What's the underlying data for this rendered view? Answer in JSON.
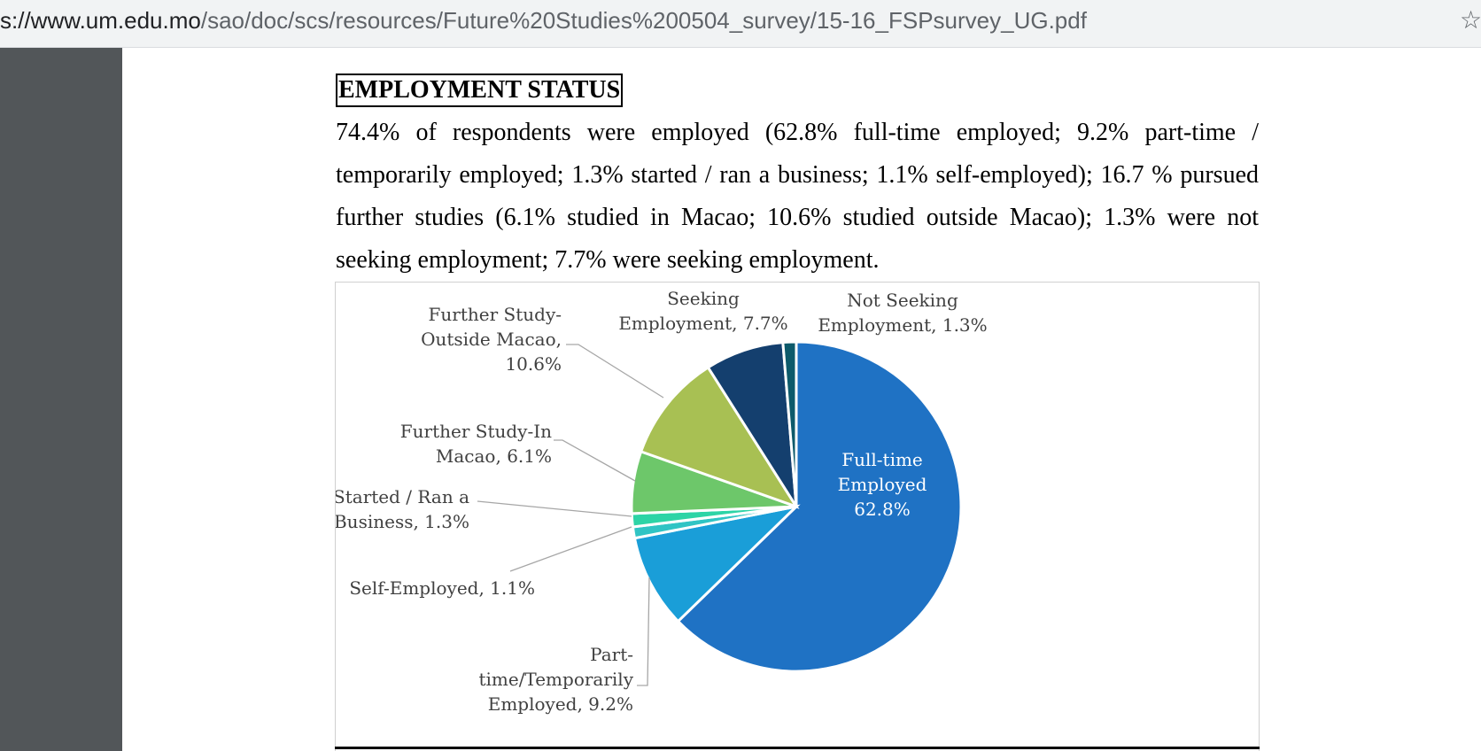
{
  "browser": {
    "url_host": "s://www.um.edu.mo",
    "url_path": "/sao/doc/scs/resources/Future%20Studies%200504_survey/15-16_FSPsurvey_UG.pdf",
    "star_icon": "star-icon"
  },
  "document": {
    "heading": "EMPLOYMENT STATUS",
    "paragraph": "74.4% of respondents were employed (62.8% full-time employed; 9.2% part-time / temporarily employed; 1.3% started / ran a business; 1.1% self-employed); 16.7 % pursued further studies (6.1% studied in Macao; 10.6% studied outside Macao); 1.3% were not seeking employment; 7.7% were seeking employment."
  },
  "chart_data": {
    "type": "pie",
    "slices": [
      {
        "label": "Full-time Employed",
        "value": 62.8,
        "color": "#1f72c4",
        "label_lines": [
          "Full-time",
          "Employed",
          "62.8%"
        ]
      },
      {
        "label": "Part-time/Temporarily Employed",
        "value": 9.2,
        "color": "#1a9ed8",
        "label_lines": [
          "Part-",
          "time/Temporarily",
          "Employed, 9.2%"
        ]
      },
      {
        "label": "Self-Employed",
        "value": 1.1,
        "color": "#30c4c4",
        "label_lines": [
          "Self-Employed, 1.1%"
        ]
      },
      {
        "label": "Started / Ran a Business",
        "value": 1.3,
        "color": "#2dd4a6",
        "label_lines": [
          "Started / Ran a",
          "Business, 1.3%"
        ]
      },
      {
        "label": "Further Study-In Macao",
        "value": 6.1,
        "color": "#6dc76a",
        "label_lines": [
          "Further Study-In",
          "Macao, 6.1%"
        ]
      },
      {
        "label": "Further Study-Outside Macao",
        "value": 10.6,
        "color": "#a8c053",
        "label_lines": [
          "Further Study-",
          "Outside Macao,",
          "10.6%"
        ]
      },
      {
        "label": "Seeking Employment",
        "value": 7.7,
        "color": "#143f6e",
        "label_lines": [
          "Seeking",
          "Employment, 7.7%"
        ]
      },
      {
        "label": "Not Seeking Employment",
        "value": 1.3,
        "color": "#0d5a6b",
        "label_lines": [
          "Not Seeking",
          "Employment, 1.3%"
        ]
      }
    ]
  }
}
